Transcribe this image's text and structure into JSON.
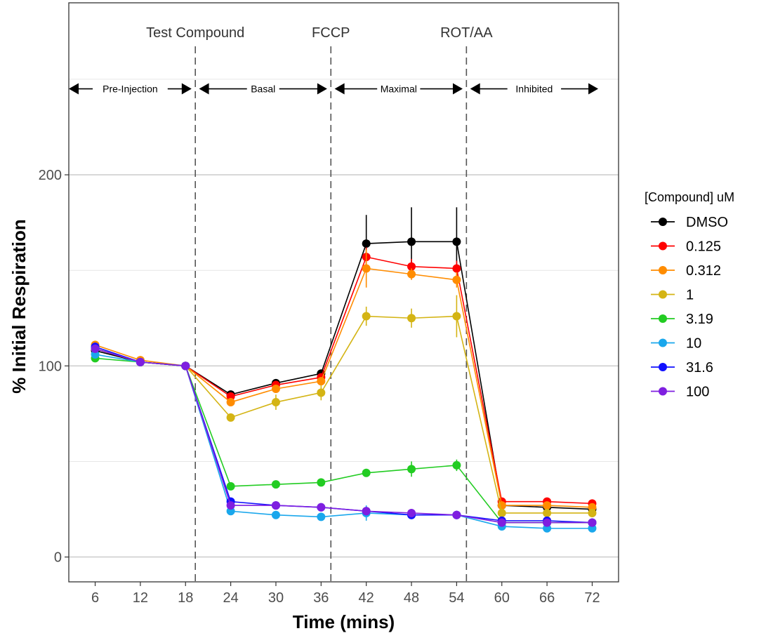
{
  "chart_data": {
    "type": "line",
    "xlabel": "Time (mins)",
    "ylabel": "% Initial Respiration",
    "x": [
      6,
      12,
      18,
      24,
      30,
      36,
      42,
      48,
      54,
      60,
      66,
      72
    ],
    "xlim": [
      2.5,
      75.5
    ],
    "ylim": [
      -13,
      290
    ],
    "y_ticks": [
      0,
      100,
      200
    ],
    "grid": true,
    "legend": {
      "title": "[Compound] uM",
      "position": "right"
    },
    "injections": [
      {
        "label": "Test Compound",
        "x": 19.3
      },
      {
        "label": "FCCP",
        "x": 37.3
      },
      {
        "label": "ROT/AA",
        "x": 55.3
      }
    ],
    "phases": [
      {
        "label": "Pre-Injection",
        "from": 2.5,
        "to": 18.8
      },
      {
        "label": "Basal",
        "from": 19.8,
        "to": 36.8
      },
      {
        "label": "Maximal",
        "from": 37.8,
        "to": 54.8
      },
      {
        "label": "Inhibited",
        "from": 55.8,
        "to": 72.8
      }
    ],
    "phase_arrow_y": 245,
    "series": [
      {
        "name": "DMSO",
        "color": "#000000",
        "values": [
          108,
          102,
          100,
          85,
          91,
          96,
          164,
          165,
          165,
          27,
          26,
          25
        ],
        "errors": [
          0,
          0,
          0,
          1.5,
          1.5,
          1.5,
          15,
          18,
          18,
          1,
          1,
          1
        ]
      },
      {
        "name": "0.125",
        "color": "#ff0000",
        "values": [
          109,
          102,
          100,
          84,
          90,
          94,
          157,
          152,
          151,
          29,
          29,
          28
        ],
        "errors": [
          0,
          0,
          0,
          1.5,
          1.5,
          1.5,
          5,
          4,
          4,
          1,
          1,
          1
        ]
      },
      {
        "name": "0.312",
        "color": "#ff8c00",
        "values": [
          111,
          103,
          100,
          81,
          88,
          92,
          151,
          148,
          145,
          27,
          27,
          26
        ],
        "errors": [
          0,
          0,
          0,
          2,
          2,
          2,
          10,
          3,
          4,
          1,
          1,
          1
        ]
      },
      {
        "name": "1",
        "color": "#d4b414",
        "values": [
          109,
          102,
          100,
          73,
          81,
          86,
          126,
          125,
          126,
          23,
          23,
          23
        ],
        "errors": [
          0,
          0,
          0,
          2,
          4,
          4,
          5,
          5,
          11,
          1,
          1,
          1
        ]
      },
      {
        "name": "3.19",
        "color": "#22cc22",
        "values": [
          104,
          102,
          100,
          37,
          38,
          39,
          44,
          46,
          48,
          18,
          18,
          18
        ],
        "errors": [
          0,
          0,
          0,
          1,
          1,
          1,
          2,
          4,
          3,
          1,
          1,
          1
        ]
      },
      {
        "name": "10",
        "color": "#1aa7ec",
        "values": [
          106,
          102,
          100,
          24,
          22,
          21,
          23,
          22,
          22,
          16,
          15,
          15
        ],
        "errors": [
          0,
          0,
          0,
          2,
          2,
          1,
          4,
          2,
          1,
          1,
          1,
          1
        ]
      },
      {
        "name": "31.6",
        "color": "#1010ff",
        "values": [
          110,
          102,
          100,
          29,
          27,
          26,
          24,
          22,
          22,
          19,
          19,
          18
        ],
        "errors": [
          0,
          0,
          0,
          1,
          1,
          1,
          1,
          1,
          1,
          1,
          1,
          1
        ]
      },
      {
        "name": "100",
        "color": "#7f1fe0",
        "values": [
          109,
          102,
          100,
          27,
          27,
          26,
          24,
          23,
          22,
          18,
          18,
          18
        ],
        "errors": [
          0,
          0,
          0,
          1,
          1,
          1,
          1,
          1,
          1,
          1,
          1,
          1
        ]
      }
    ]
  }
}
